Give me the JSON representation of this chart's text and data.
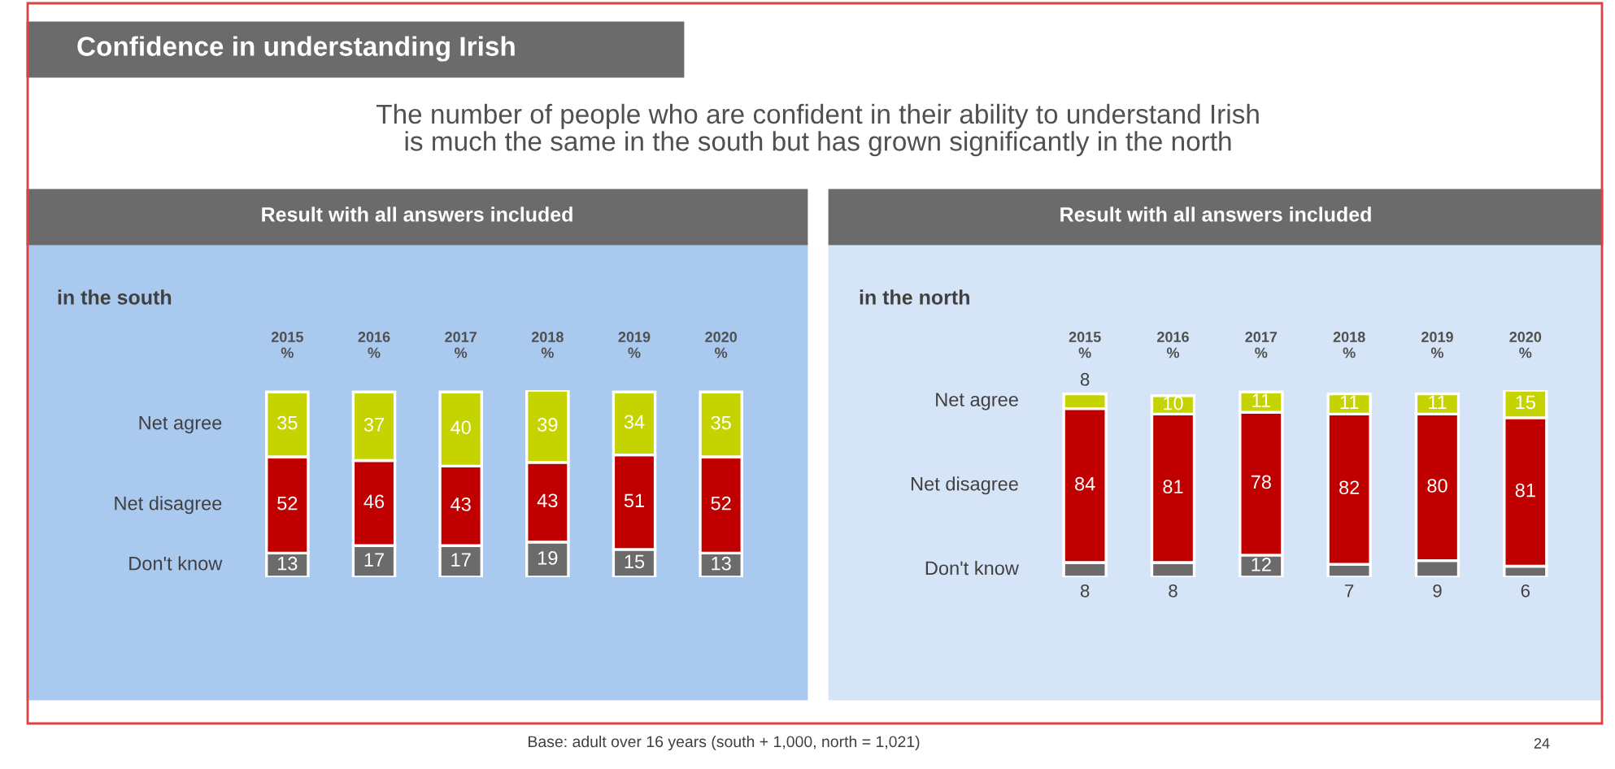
{
  "chart_data": [
    {
      "type": "bar",
      "stacked": true,
      "data_labels": true,
      "title": "Result with all answers included",
      "subtitle": "in the south",
      "annotations": [
        "Confidence in understanding Irish",
        "The number of people who are confident in their ability to understand Irish\nis much the same in the south but has grown significantly in the north",
        "Base: adult over 16 years (south + 1,000, north = 1,021)",
        "24"
      ],
      "categories": [
        "2015\n%",
        "2016\n%",
        "2017\n%",
        "2018\n%",
        "2019\n%",
        "2020\n%"
      ],
      "series": [
        {
          "name": "Don't know",
          "color": "#6b6b6b",
          "values": [
            13,
            17,
            17,
            19,
            15,
            13
          ]
        },
        {
          "name": "Net disagree",
          "color": "#c00000",
          "values": [
            52,
            46,
            43,
            43,
            51,
            52
          ]
        },
        {
          "name": "Net agree",
          "color": "#c5d300",
          "values": [
            35,
            37,
            40,
            39,
            34,
            35
          ]
        }
      ]
    },
    {
      "type": "bar",
      "stacked": true,
      "data_labels": true,
      "title": "Result with all answers included",
      "subtitle": "in the north",
      "categories": [
        "2015\n%",
        "2016\n%",
        "2017\n%",
        "2018\n%",
        "2019\n%",
        "2020\n%"
      ],
      "series": [
        {
          "name": "Don't know",
          "color": "#6b6b6b",
          "values": [
            8,
            8,
            12,
            7,
            9,
            6
          ]
        },
        {
          "name": "Net disagree",
          "color": "#c00000",
          "values": [
            84,
            81,
            78,
            82,
            80,
            81
          ]
        },
        {
          "name": "Net agree",
          "color": "#c5d300",
          "values": [
            8,
            10,
            11,
            11,
            11,
            15
          ]
        }
      ]
    }
  ]
}
